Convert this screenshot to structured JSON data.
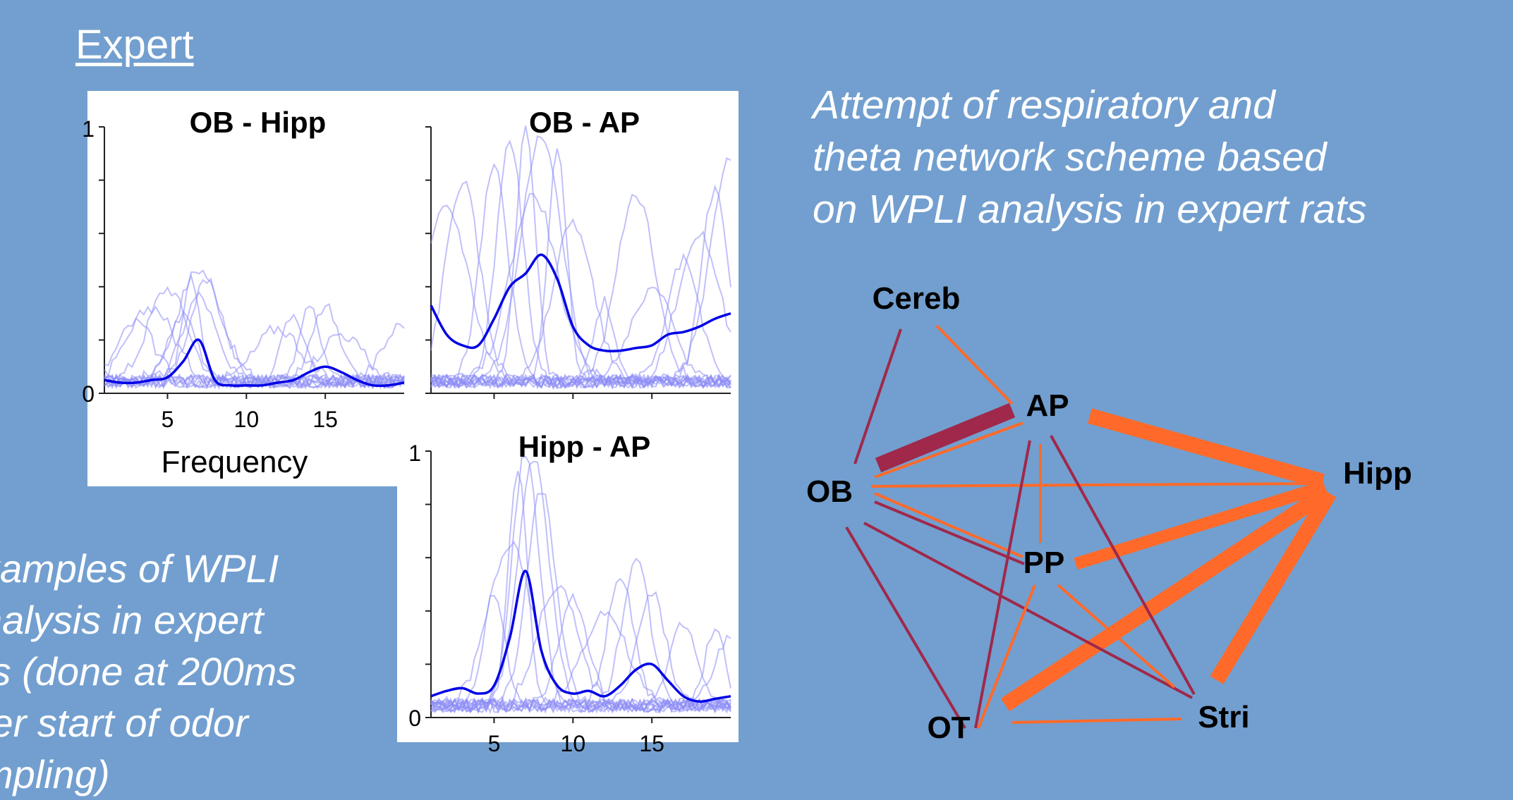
{
  "heading": "Expert",
  "caption_left": [
    "xamples of WPLI",
    "nalysis in expert",
    "ts (done at 200ms",
    "ter start of odor",
    "mpling)"
  ],
  "caption_right": [
    "Attempt of respiratory and",
    "theta network scheme based",
    "on WPLI analysis in expert rats"
  ],
  "colors": {
    "background": "#729fcf",
    "mean_line": "#0000e6",
    "trial_lines": "#8c8cf5",
    "theta_link": "#ff6a2a",
    "resp_link": "#a0284a"
  },
  "chart_data": [
    {
      "type": "line",
      "title": "OB - Hipp",
      "xlabel": "Frequency",
      "x_ticks": [
        "5",
        "10",
        "15"
      ],
      "y_ticks": [
        "1",
        "0"
      ],
      "xlim": [
        1,
        20
      ],
      "ylim": [
        0,
        1
      ],
      "x": [
        1,
        2,
        3,
        4,
        5,
        6,
        7,
        8,
        9,
        10,
        11,
        12,
        13,
        14,
        15,
        16,
        17,
        18,
        19,
        20
      ],
      "mean": [
        0.05,
        0.04,
        0.04,
        0.05,
        0.06,
        0.12,
        0.2,
        0.05,
        0.03,
        0.03,
        0.03,
        0.04,
        0.05,
        0.08,
        0.1,
        0.08,
        0.05,
        0.03,
        0.03,
        0.04
      ],
      "trial_peaks": [
        [
          0.42,
          7
        ],
        [
          0.4,
          6.5
        ],
        [
          0.37,
          7.5
        ],
        [
          0.35,
          5
        ],
        [
          0.28,
          4
        ],
        [
          0.25,
          6
        ],
        [
          0.32,
          7
        ],
        [
          0.22,
          3
        ],
        [
          0.3,
          14
        ],
        [
          0.25,
          13
        ],
        [
          0.28,
          15
        ],
        [
          0.22,
          20
        ],
        [
          0.18,
          16
        ],
        [
          0.2,
          12
        ]
      ]
    },
    {
      "type": "line",
      "title": "OB - AP",
      "y_ticks": [],
      "xlim": [
        1,
        20
      ],
      "ylim": [
        0,
        1
      ],
      "x": [
        1,
        2,
        3,
        4,
        5,
        6,
        7,
        8,
        9,
        10,
        11,
        12,
        13,
        14,
        15,
        16,
        17,
        18,
        19,
        20
      ],
      "mean": [
        0.33,
        0.22,
        0.18,
        0.18,
        0.28,
        0.4,
        0.45,
        0.52,
        0.43,
        0.25,
        0.18,
        0.16,
        0.16,
        0.17,
        0.18,
        0.22,
        0.23,
        0.25,
        0.28,
        0.3
      ],
      "trial_peaks": [
        [
          0.95,
          7
        ],
        [
          0.92,
          8
        ],
        [
          0.9,
          6
        ],
        [
          0.88,
          9
        ],
        [
          0.8,
          5
        ],
        [
          0.75,
          3
        ],
        [
          0.7,
          7.5
        ],
        [
          0.65,
          2
        ],
        [
          0.6,
          10
        ],
        [
          0.85,
          20
        ],
        [
          0.72,
          19
        ],
        [
          0.55,
          18
        ],
        [
          0.45,
          17
        ],
        [
          0.7,
          14
        ],
        [
          0.35,
          15
        ],
        [
          0.3,
          12
        ]
      ]
    },
    {
      "type": "line",
      "title": "Hipp - AP",
      "y_ticks": [
        "1",
        "0"
      ],
      "x_ticks": [
        "5",
        "10",
        "15"
      ],
      "xlim": [
        1,
        20
      ],
      "ylim": [
        0,
        1
      ],
      "x": [
        1,
        2,
        3,
        4,
        5,
        6,
        7,
        8,
        9,
        10,
        11,
        12,
        13,
        14,
        15,
        16,
        17,
        18,
        19,
        20
      ],
      "mean": [
        0.08,
        0.1,
        0.11,
        0.09,
        0.12,
        0.3,
        0.55,
        0.25,
        0.12,
        0.09,
        0.1,
        0.08,
        0.12,
        0.18,
        0.2,
        0.14,
        0.08,
        0.06,
        0.07,
        0.08
      ],
      "trial_peaks": [
        [
          0.95,
          7
        ],
        [
          0.92,
          7.5
        ],
        [
          0.88,
          6.5
        ],
        [
          0.8,
          8
        ],
        [
          0.6,
          6
        ],
        [
          0.45,
          9
        ],
        [
          0.4,
          10
        ],
        [
          0.42,
          5
        ],
        [
          0.55,
          14
        ],
        [
          0.48,
          13
        ],
        [
          0.42,
          15
        ],
        [
          0.35,
          12
        ],
        [
          0.28,
          19
        ],
        [
          0.25,
          20
        ],
        [
          0.3,
          17
        ]
      ]
    }
  ],
  "network": {
    "nodes": [
      {
        "id": "Cereb",
        "label": "Cereb"
      },
      {
        "id": "AP",
        "label": "AP"
      },
      {
        "id": "OB",
        "label": "OB"
      },
      {
        "id": "Hipp",
        "label": "Hipp"
      },
      {
        "id": "PP",
        "label": "PP"
      },
      {
        "id": "OT",
        "label": "OT"
      },
      {
        "id": "Stri",
        "label": "Stri"
      }
    ],
    "links": [
      {
        "from": "OB",
        "to": "AP",
        "kind": "resp",
        "weight": 5
      },
      {
        "from": "OB",
        "to": "Cereb",
        "kind": "resp",
        "weight": 1
      },
      {
        "from": "Cereb",
        "to": "AP",
        "kind": "theta",
        "weight": 1
      },
      {
        "from": "AP",
        "to": "Hipp",
        "kind": "theta",
        "weight": 5
      },
      {
        "from": "OB",
        "to": "Hipp",
        "kind": "theta",
        "weight": 1
      },
      {
        "from": "PP",
        "to": "Hipp",
        "kind": "theta",
        "weight": 4
      },
      {
        "from": "OT",
        "to": "Hipp",
        "kind": "theta",
        "weight": 5
      },
      {
        "from": "Stri",
        "to": "Hipp",
        "kind": "theta",
        "weight": 5
      },
      {
        "from": "AP",
        "to": "PP",
        "kind": "theta",
        "weight": 1
      },
      {
        "from": "OB",
        "to": "AP",
        "kind": "theta",
        "weight": 1
      },
      {
        "from": "OB",
        "to": "PP",
        "kind": "theta",
        "weight": 1
      },
      {
        "from": "OB",
        "to": "PP",
        "kind": "resp",
        "weight": 1
      },
      {
        "from": "OB",
        "to": "Stri",
        "kind": "resp",
        "weight": 1
      },
      {
        "from": "OB",
        "to": "OT",
        "kind": "resp",
        "weight": 1
      },
      {
        "from": "AP",
        "to": "OT",
        "kind": "resp",
        "weight": 1
      },
      {
        "from": "AP",
        "to": "Stri",
        "kind": "resp",
        "weight": 1
      },
      {
        "from": "PP",
        "to": "OT",
        "kind": "theta",
        "weight": 1
      },
      {
        "from": "PP",
        "to": "Stri",
        "kind": "theta",
        "weight": 1
      },
      {
        "from": "OT",
        "to": "Stri",
        "kind": "theta",
        "weight": 1
      }
    ]
  }
}
